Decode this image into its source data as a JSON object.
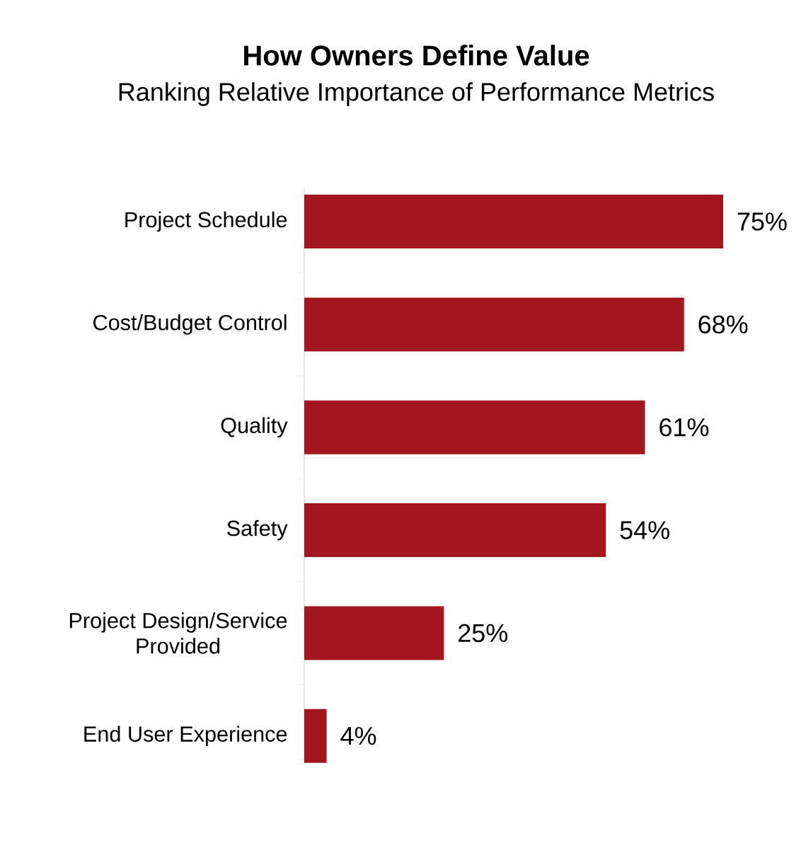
{
  "chart_data": {
    "type": "bar",
    "orientation": "horizontal",
    "title": "How Owners Define Value",
    "subtitle": "Ranking Relative Importance of Performance Metrics",
    "categories": [
      "Project Schedule",
      "Cost/Budget Control",
      "Quality",
      "Safety",
      "Project Design/Service Provided",
      "End User Experience"
    ],
    "values": [
      75,
      68,
      61,
      54,
      25,
      4
    ],
    "value_labels": [
      "75%",
      "68%",
      "61%",
      "54%",
      "25%",
      "4%"
    ],
    "color": "#a3161f"
  }
}
